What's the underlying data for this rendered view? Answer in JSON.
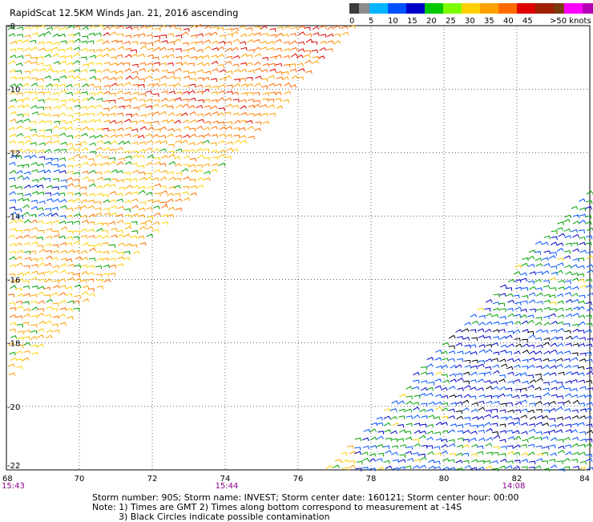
{
  "title": "RapidScat 12.5KM Winds Jan. 21, 2016 ascending",
  "legend": {
    "swatches": [
      {
        "color": "#3c3c3c"
      },
      {
        "color": "#8c8c8c"
      },
      {
        "color": "#00b4ff"
      },
      {
        "color": "#0050ff"
      },
      {
        "color": "#0000c8"
      },
      {
        "color": "#00c800"
      },
      {
        "color": "#7cfc00"
      },
      {
        "color": "#ffd000"
      },
      {
        "color": "#ffa000"
      },
      {
        "color": "#ff6a00"
      },
      {
        "color": "#e00000"
      },
      {
        "color": "#a02000"
      },
      {
        "color": "#7a3a10"
      },
      {
        "color": "#ff00ff"
      },
      {
        "color": "#b400b4"
      },
      {
        "color": "#500080"
      }
    ],
    "labels": [
      "0",
      "5",
      "10",
      "15",
      "20",
      "25",
      "30",
      "35",
      "40",
      "45",
      ">50 knots"
    ]
  },
  "axes": {
    "x_ticks": [
      "68",
      "70",
      "72",
      "74",
      "76",
      "78",
      "80",
      "82",
      "84"
    ],
    "y_ticks": [
      "-8",
      "-10",
      "-12",
      "-14",
      "-16",
      "-18",
      "-20",
      "-22"
    ],
    "time_labels": [
      "15:43",
      "15:44",
      "14:08"
    ]
  },
  "footer": {
    "storm_info": "Storm number: 90S;  Storm name: INVEST;  Storm center date: 160121;  Storm center hour: 00:00",
    "note1": "Note: 1) Times are GMT  2) Times along bottom correspond to measurement at -14S",
    "note2": "3) Black Circles indicate possible contamination"
  },
  "chart_data": {
    "type": "wind-barb-map",
    "xlabel": "",
    "ylabel": "",
    "xlim": [
      68,
      84
    ],
    "ylim": [
      -22,
      -8
    ],
    "grid": true,
    "swaths": [
      {
        "pass": "ascending",
        "time_at_14S": "15:43",
        "coverage": "upper-left triangle from 68E to ~77.5E at 8S, diminishing to 68E at ~19S"
      },
      {
        "pass": "ascending",
        "time_at_14S": "14:08",
        "coverage": "lower-right triangle from ~76.5E to 84E at 22S, rising to 84E at ~13S"
      }
    ],
    "wind_regions_knots": [
      {
        "region": "68-70E, 8-12S",
        "speed": "15-25"
      },
      {
        "region": "70-75E, 8-11S",
        "speed": "25-35"
      },
      {
        "region": "68-69E, 12-14S",
        "speed": "10-20"
      },
      {
        "region": "68-72E, 14-19S",
        "speed": "20-30"
      },
      {
        "region": "78-84E, 15-22S",
        "speed": "10-20"
      },
      {
        "region": "80-84E, 18-21S",
        "speed": "<10"
      }
    ]
  }
}
